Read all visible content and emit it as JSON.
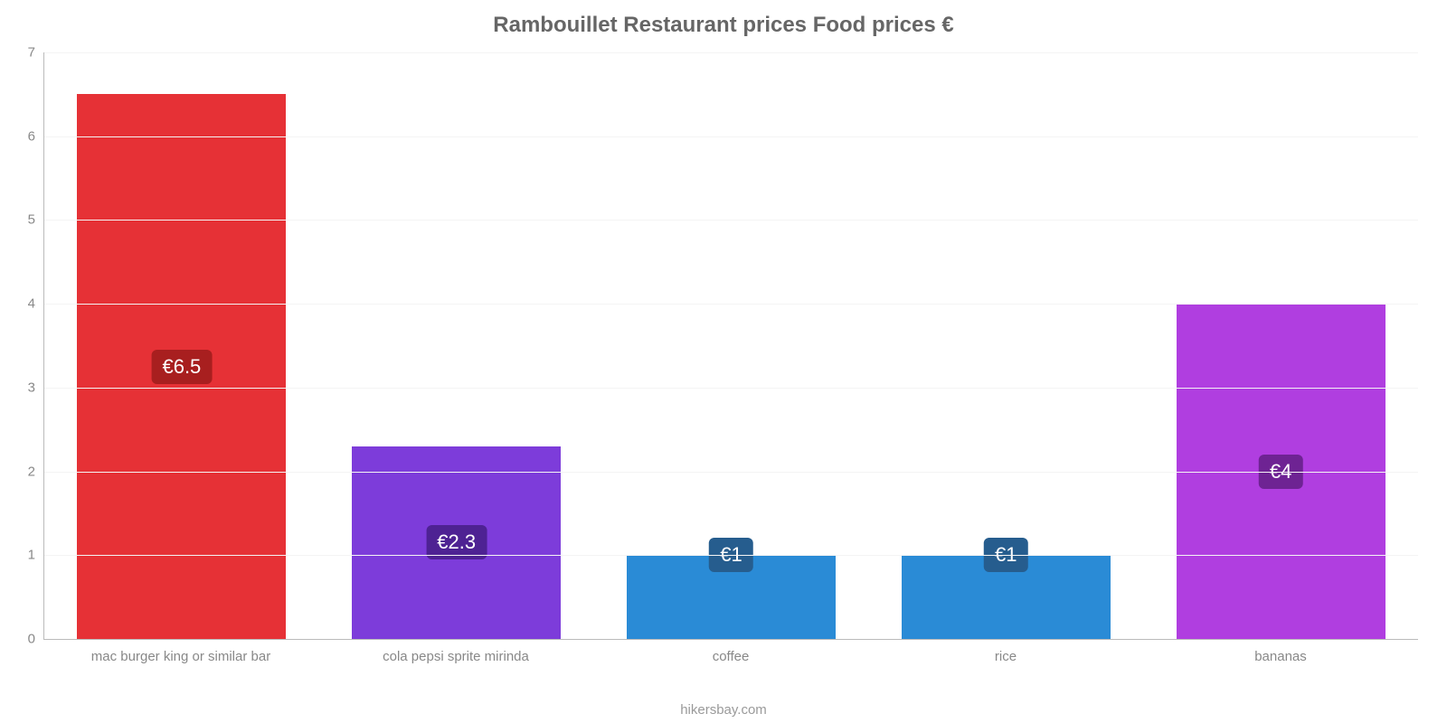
{
  "chart": {
    "type": "bar",
    "title": "Rambouillet Restaurant prices Food prices €",
    "title_color": "#666666",
    "title_fontsize": 24,
    "background_color": "#ffffff",
    "grid_color": "#f4f4f4",
    "axis_color": "#bbbbbb",
    "tick_label_color": "#888888",
    "tick_label_fontsize": 15,
    "ylim": [
      0,
      7
    ],
    "ytick_step": 1,
    "yticks": [
      0,
      1,
      2,
      3,
      4,
      5,
      6,
      7
    ],
    "bar_width_pct": 76,
    "categories": [
      "mac burger king or similar bar",
      "cola pepsi sprite mirinda",
      "coffee",
      "rice",
      "bananas"
    ],
    "values": [
      6.5,
      2.3,
      1,
      1,
      4
    ],
    "value_labels": [
      "€6.5",
      "€2.3",
      "€1",
      "€1",
      "€4"
    ],
    "bar_colors": [
      "#e63136",
      "#7d3cda",
      "#2a8bd6",
      "#2a8bd6",
      "#b03ee0"
    ],
    "badge_colors": [
      "#a81f1f",
      "#4e2293",
      "#265d8e",
      "#265d8e",
      "#6e2393"
    ],
    "badge_text_color": "#ffffff",
    "badge_fontsize": 22,
    "value_position": "center",
    "attribution": "hikersbay.com",
    "attribution_color": "#9a9a9a",
    "attribution_fontsize": 15
  }
}
